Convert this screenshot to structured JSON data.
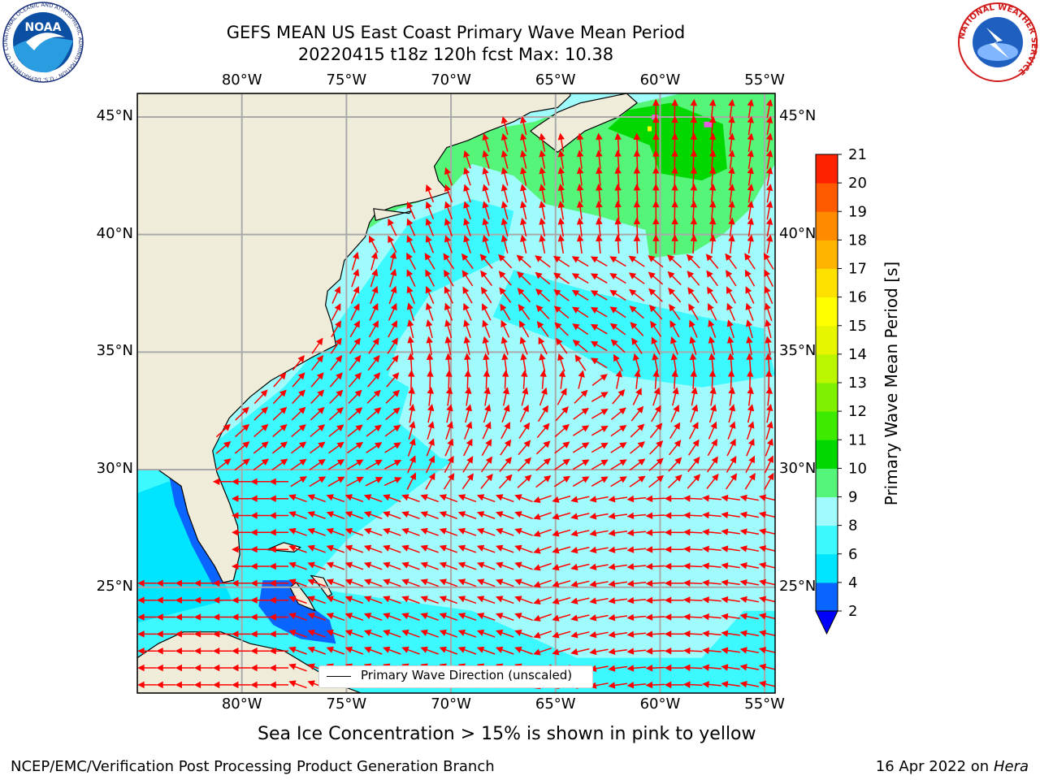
{
  "title": {
    "line1": "GEFS MEAN US East Coast Primary Wave Mean Period",
    "line2": "20220415 t18z 120h fcst   Max: 10.38"
  },
  "map": {
    "lon_ticks": [
      "80°W",
      "75°W",
      "70°W",
      "65°W",
      "60°W",
      "55°W"
    ],
    "lat_ticks": [
      "45°N",
      "40°N",
      "35°N",
      "30°N",
      "25°N"
    ],
    "lon_values": [
      -80,
      -75,
      -70,
      -65,
      -60,
      -55
    ],
    "lat_values": [
      45,
      40,
      35,
      30,
      25
    ],
    "lon_range": [
      -85,
      -54.5
    ],
    "lat_range": [
      20.5,
      46
    ],
    "legend": "Primary Wave Direction (unscaled)",
    "colors": {
      "land": "#efedda",
      "gridline": "#a9a9a9",
      "arrow": "#ff0000",
      "coast": "#000000"
    }
  },
  "colorbar": {
    "label": "Primary Wave Mean Period [s]",
    "levels": [
      2,
      4,
      6,
      8,
      9,
      10,
      11,
      12,
      13,
      14,
      15,
      16,
      17,
      18,
      19,
      20,
      21
    ],
    "tick_labels": [
      "2",
      "4",
      "6",
      "8",
      "9",
      "10",
      "11",
      "12",
      "13",
      "14",
      "15",
      "16",
      "17",
      "18",
      "19",
      "20",
      "21"
    ],
    "colors": [
      "#0a64ff",
      "#00e5ff",
      "#3cf9ff",
      "#a0fcfc",
      "#55f57a",
      "#00d800",
      "#3ceb00",
      "#7ef000",
      "#bcf500",
      "#e8f500",
      "#ffff00",
      "#ffe100",
      "#ffb400",
      "#ff8a00",
      "#ff5a00",
      "#ff2200"
    ],
    "under_color": "#0000ff"
  },
  "note": "Sea Ice Concentration > 15% is shown in pink to yellow",
  "footer": {
    "left": "NCEP/EMC/Verification Post Processing Product Generation Branch",
    "right_date": "16 Apr 2022 on ",
    "right_host": "Hera"
  },
  "logos": {
    "noaa_text": "NOAA",
    "noaa_ring": "NATIONAL OCEANIC AND ATMOSPHERIC ADMINISTRATION · U.S. DEPARTMENT OF COMMERCE",
    "nws_ring": "NATIONAL WEATHER SERVICE"
  }
}
